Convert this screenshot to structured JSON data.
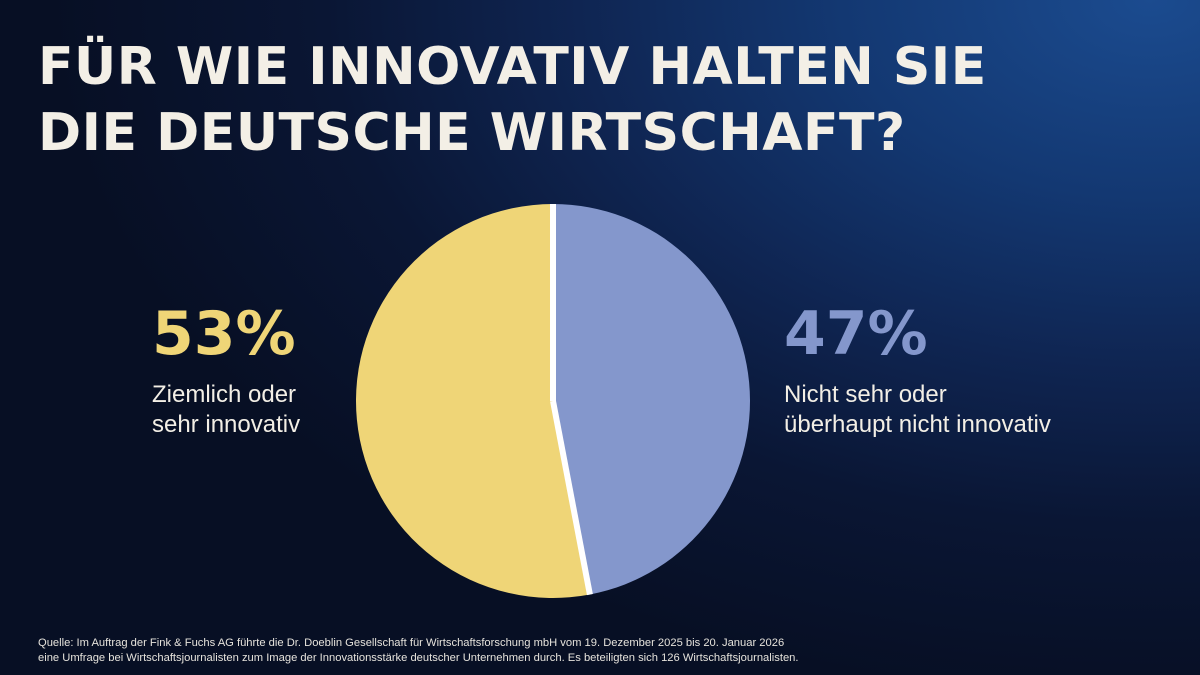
{
  "title": {
    "line1": "FÜR WIE INNOVATIV HALTEN SIE",
    "line2": "DIE DEUTSCHE WIRTSCHAFT?"
  },
  "colors": {
    "yellow": "#efd577",
    "blue": "#8497cc",
    "divider": "#ffffff"
  },
  "chart_data": {
    "type": "pie",
    "title": "FÜR WIE INNOVATIV HALTEN SIE DIE DEUTSCHE WIRTSCHAFT?",
    "slices": [
      {
        "label": "Ziemlich oder sehr innovativ",
        "value": 53,
        "display": "53%",
        "color": "#efd577"
      },
      {
        "label": "Nicht sehr oder überhaupt nicht innovativ",
        "value": 47,
        "display": "47%",
        "color": "#8497cc"
      }
    ],
    "legend": "none"
  },
  "stats": {
    "left": {
      "value": "53%",
      "label_line1": "Ziemlich oder",
      "label_line2": "sehr innovativ"
    },
    "right": {
      "value": "47%",
      "label_line1": "Nicht sehr oder",
      "label_line2": "überhaupt nicht innovativ"
    }
  },
  "source": {
    "line1": "Quelle: Im Auftrag der Fink & Fuchs AG führte die Dr. Doeblin Gesellschaft für Wirtschaftsforschung mbH vom 19. Dezember 2025 bis 20. Januar 2026",
    "line2": "eine Umfrage bei Wirtschaftsjournalisten zum Image der Innovationsstärke deutscher Unternehmen durch. Es  beteiligten sich 126 Wirtschaftsjournalisten."
  }
}
